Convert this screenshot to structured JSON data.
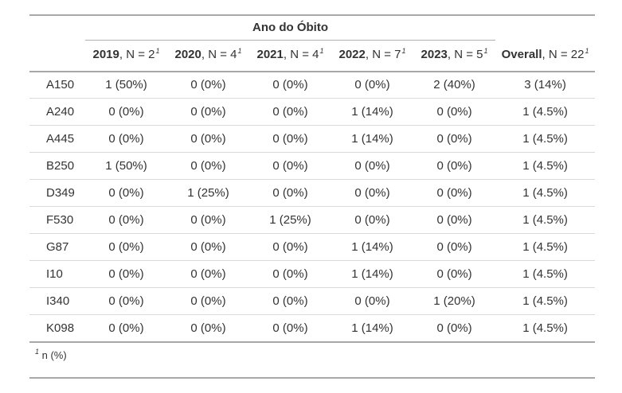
{
  "chart_data": {
    "type": "table",
    "spanner_title": "Ano do Óbito",
    "columns": [
      {
        "label_bold": "2019",
        "label_rest": ", N = 2",
        "footnote_mark": "1"
      },
      {
        "label_bold": "2020",
        "label_rest": ", N = 4",
        "footnote_mark": "1"
      },
      {
        "label_bold": "2021",
        "label_rest": ", N = 4",
        "footnote_mark": "1"
      },
      {
        "label_bold": "2022",
        "label_rest": ", N = 7",
        "footnote_mark": "1"
      },
      {
        "label_bold": "2023",
        "label_rest": ", N = 5",
        "footnote_mark": "1"
      },
      {
        "label_bold": "Overall",
        "label_rest": ", N = 22",
        "footnote_mark": "1"
      }
    ],
    "rows": [
      {
        "label": "A150",
        "cells": [
          "1 (50%)",
          "0 (0%)",
          "0 (0%)",
          "0 (0%)",
          "2 (40%)",
          "3 (14%)"
        ]
      },
      {
        "label": "A240",
        "cells": [
          "0 (0%)",
          "0 (0%)",
          "0 (0%)",
          "1 (14%)",
          "0 (0%)",
          "1 (4.5%)"
        ]
      },
      {
        "label": "A445",
        "cells": [
          "0 (0%)",
          "0 (0%)",
          "0 (0%)",
          "1 (14%)",
          "0 (0%)",
          "1 (4.5%)"
        ]
      },
      {
        "label": "B250",
        "cells": [
          "1 (50%)",
          "0 (0%)",
          "0 (0%)",
          "0 (0%)",
          "0 (0%)",
          "1 (4.5%)"
        ]
      },
      {
        "label": "D349",
        "cells": [
          "0 (0%)",
          "1 (25%)",
          "0 (0%)",
          "0 (0%)",
          "0 (0%)",
          "1 (4.5%)"
        ]
      },
      {
        "label": "F530",
        "cells": [
          "0 (0%)",
          "0 (0%)",
          "1 (25%)",
          "0 (0%)",
          "0 (0%)",
          "1 (4.5%)"
        ]
      },
      {
        "label": "G87",
        "cells": [
          "0 (0%)",
          "0 (0%)",
          "0 (0%)",
          "1 (14%)",
          "0 (0%)",
          "1 (4.5%)"
        ]
      },
      {
        "label": "I10",
        "cells": [
          "0 (0%)",
          "0 (0%)",
          "0 (0%)",
          "1 (14%)",
          "0 (0%)",
          "1 (4.5%)"
        ]
      },
      {
        "label": "I340",
        "cells": [
          "0 (0%)",
          "0 (0%)",
          "0 (0%)",
          "0 (0%)",
          "1 (20%)",
          "1 (4.5%)"
        ]
      },
      {
        "label": "K098",
        "cells": [
          "0 (0%)",
          "0 (0%)",
          "0 (0%)",
          "1 (14%)",
          "0 (0%)",
          "1 (4.5%)"
        ]
      }
    ],
    "footnote": {
      "mark": "1",
      "text": "n (%)"
    },
    "layout_hints": {
      "spanner_spans_columns": [
        "2019",
        "2020",
        "2021",
        "2022",
        "2023"
      ],
      "grid": "horizontal-rules-only",
      "body_alignment": "center",
      "label_alignment": "left"
    },
    "colors": {
      "text": "#333333",
      "strong_border": "#a8a8a8",
      "light_border": "#d9d9d9",
      "spanner_border": "#b0b0b0",
      "background": "#ffffff"
    }
  }
}
